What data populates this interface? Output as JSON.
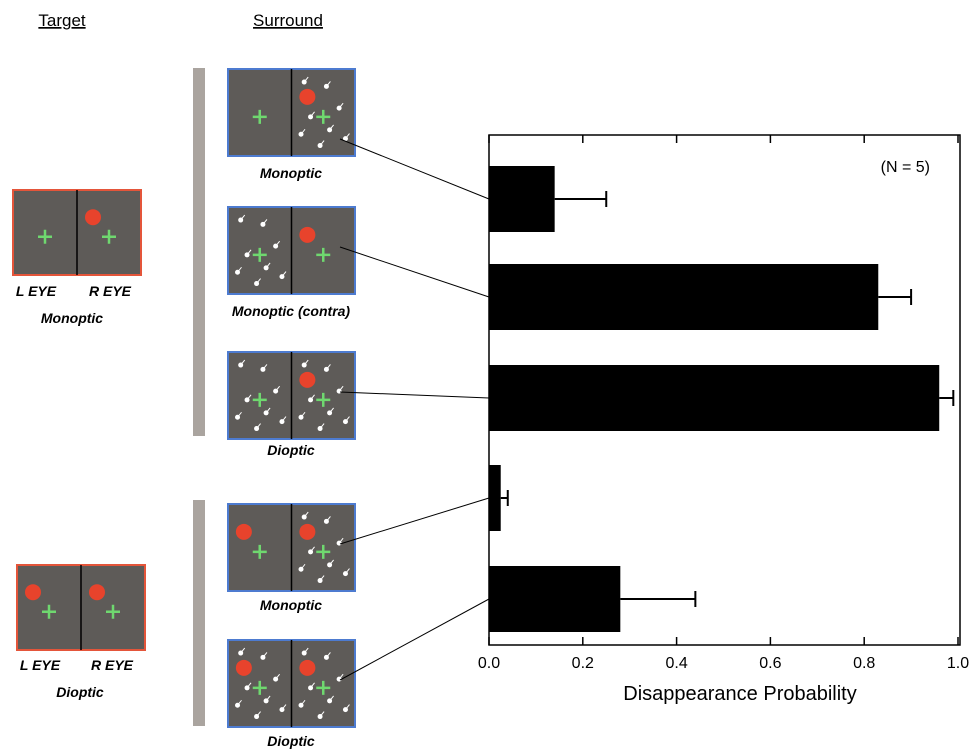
{
  "panels": {
    "target_header": "Target",
    "surround_header": "Surround",
    "targets": [
      {
        "left": "L EYE",
        "right": "R EYE",
        "label": "Monoptic"
      },
      {
        "left": "L EYE",
        "right": "R EYE",
        "label": "Dioptic"
      }
    ]
  },
  "chart_data": {
    "type": "bar",
    "orientation": "horizontal",
    "xlabel": "Disappearance Probability",
    "annotation": "(N = 5)",
    "categories": [
      "Monoptic",
      "Monoptic (contra)",
      "Dioptic",
      "Monoptic",
      "Dioptic"
    ],
    "values": [
      0.14,
      0.83,
      0.96,
      0.025,
      0.28
    ],
    "errors": [
      0.11,
      0.07,
      0.03,
      0.015,
      0.16
    ],
    "color": "#000000",
    "xlim": [
      0,
      1
    ],
    "xticks": [
      {
        "value": 0,
        "label": "0.0"
      },
      {
        "value": 0.2,
        "label": "0.2"
      },
      {
        "value": 0.4,
        "label": "0.4"
      },
      {
        "value": 0.6,
        "label": "0.6"
      },
      {
        "value": 0.8,
        "label": "0.8"
      },
      {
        "value": 1,
        "label": "1.0"
      }
    ]
  }
}
